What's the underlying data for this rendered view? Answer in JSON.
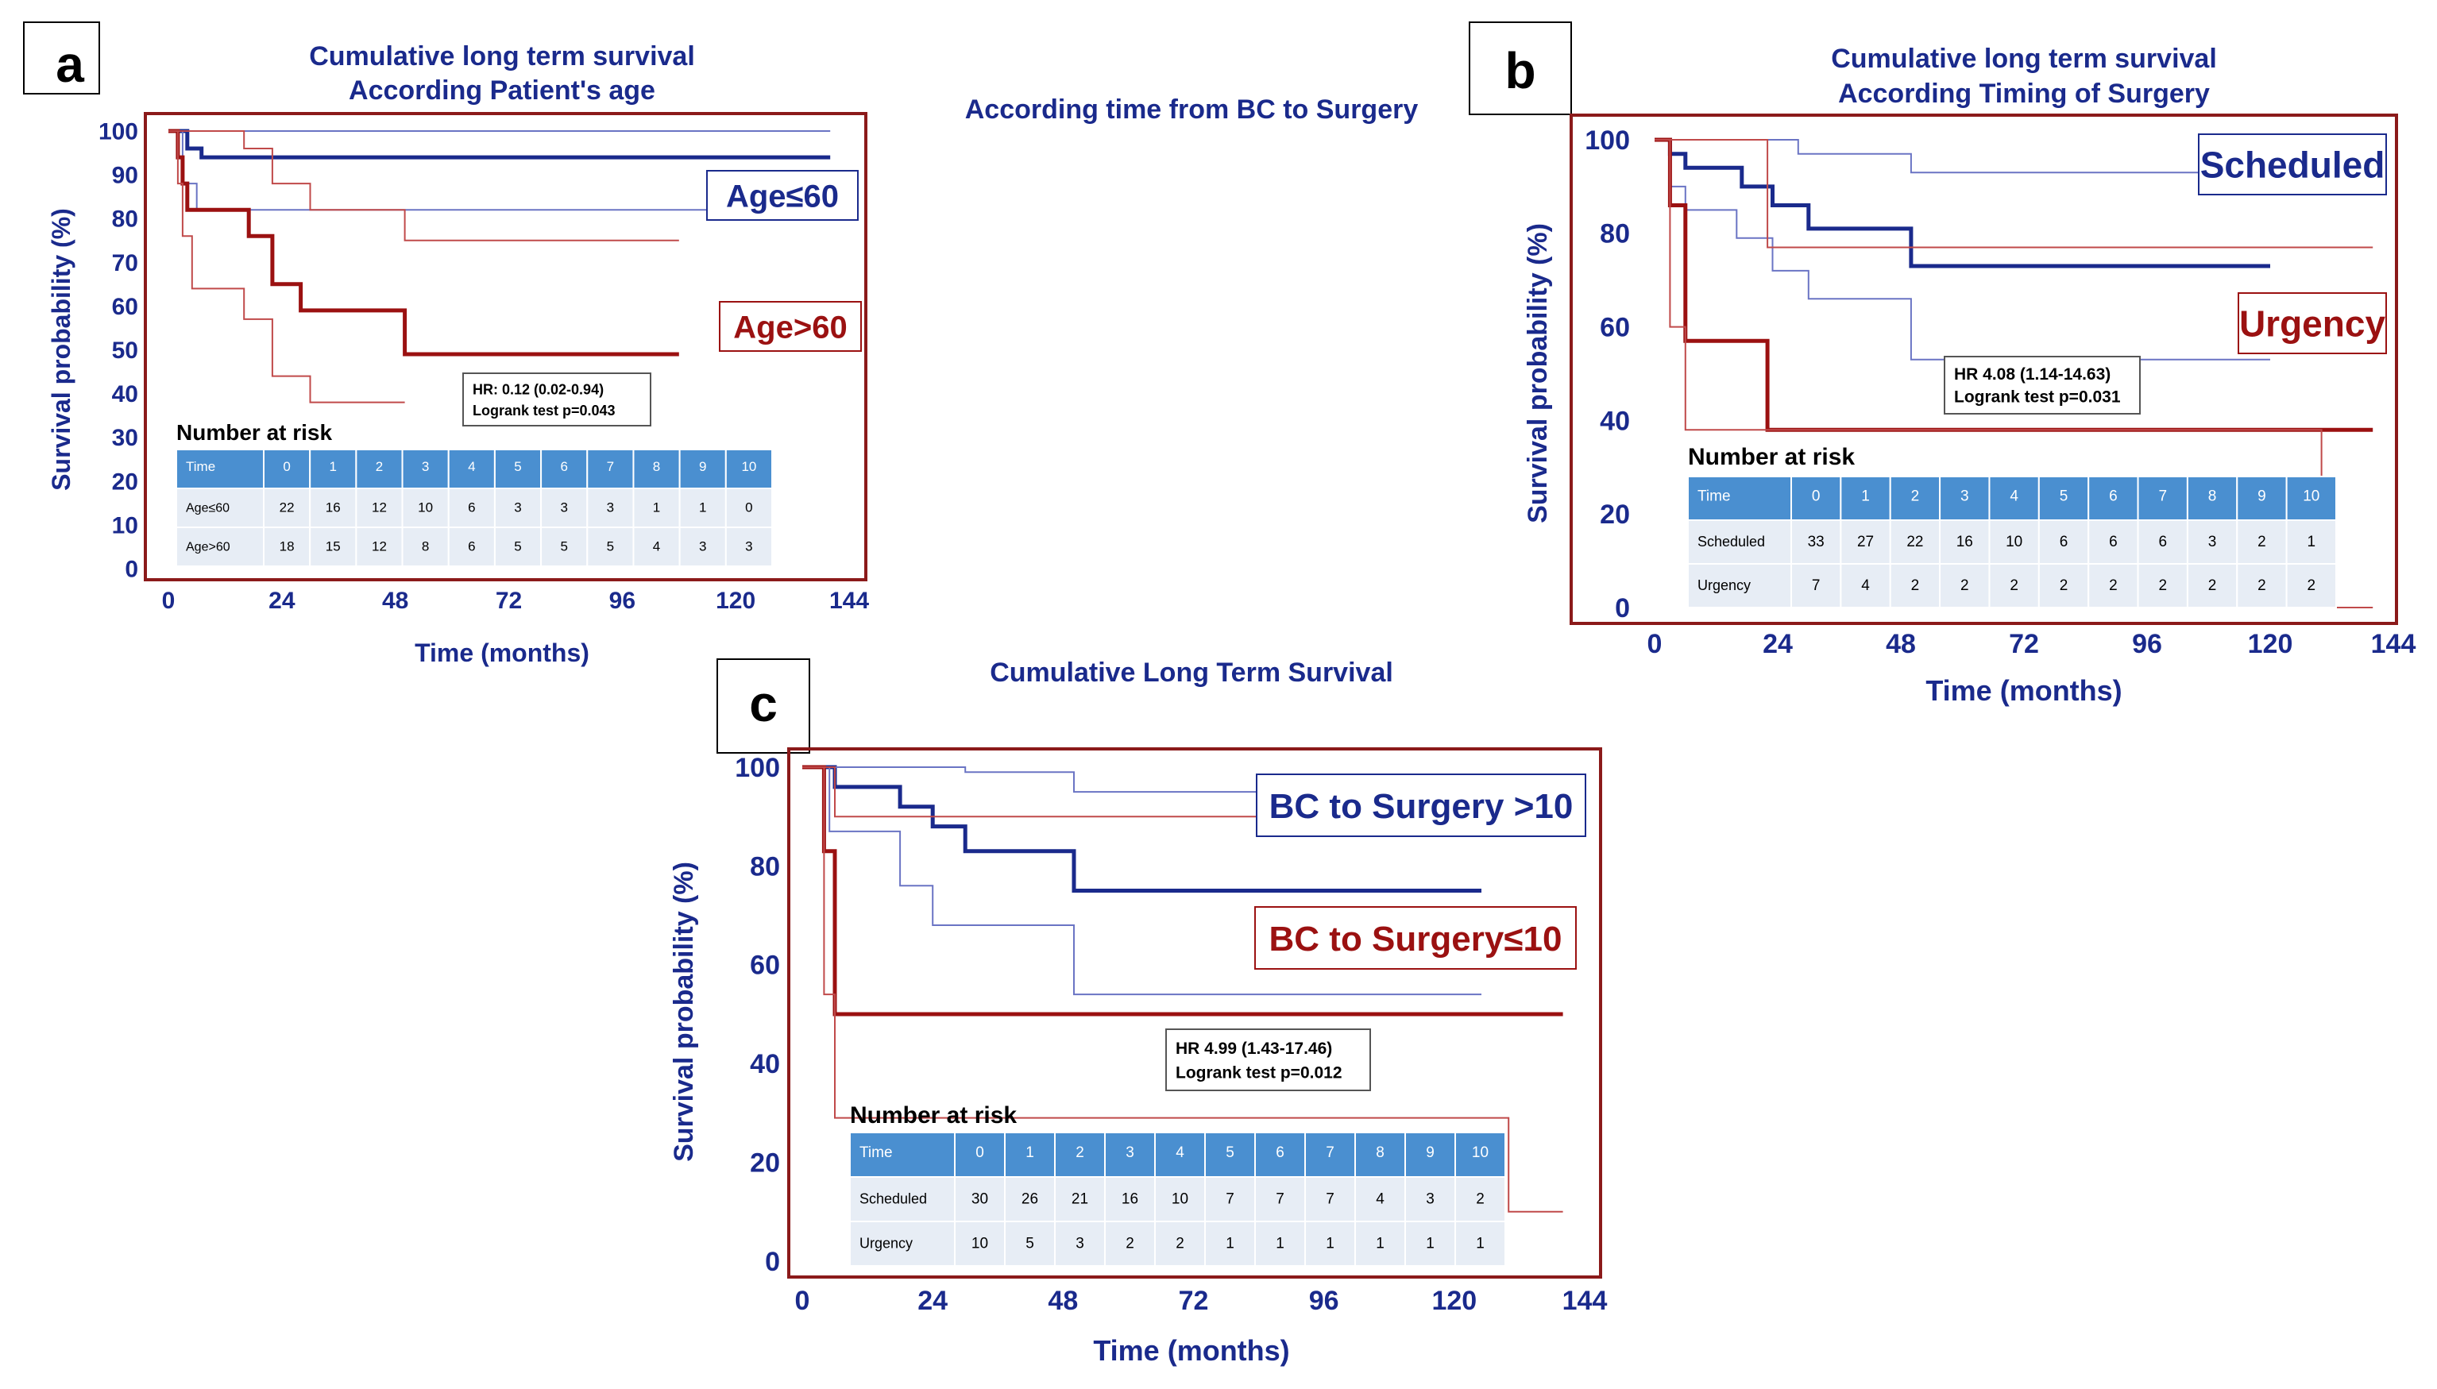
{
  "colors": {
    "frame": "#8b1a1a",
    "blue": "#1a2a8c",
    "blue_ci": "#6a74c4",
    "red": "#9b1111",
    "red_ci": "#c04a4a",
    "table_head": "#4a8fd0",
    "table_row": "#e7edf5"
  },
  "chart_data": [
    {
      "id": "a",
      "type": "line",
      "panel_label": "a",
      "title_line1": "Cumulative long term survival",
      "title_line2": "According Patient's age",
      "xlabel": "Time (months)",
      "ylabel": "Survival probability (%)",
      "xlim": [
        0,
        144
      ],
      "ylim": [
        0,
        100
      ],
      "xticks": [
        0,
        24,
        48,
        72,
        96,
        120,
        144
      ],
      "yticks": [
        0,
        10,
        20,
        30,
        40,
        50,
        60,
        70,
        80,
        90,
        100
      ],
      "legend": [
        {
          "text": "Age≤60",
          "color_key": "blue",
          "position": "upper-right"
        },
        {
          "text": "Age>60",
          "color_key": "red",
          "position": "middle-right"
        }
      ],
      "hr_line1": "HR: 0.12 (0.02-0.94)",
      "hr_line2": "Logrank test p=0.043",
      "series": [
        {
          "name": "Age≤60",
          "role": "estimate",
          "color_key": "blue",
          "x": [
            0,
            4,
            4,
            7,
            7,
            140
          ],
          "y": [
            100,
            100,
            96,
            96,
            94,
            94
          ]
        },
        {
          "name": "Age≤60 upper CI",
          "role": "ci",
          "color_key": "blue_ci",
          "x": [
            0,
            140
          ],
          "y": [
            100,
            100
          ]
        },
        {
          "name": "Age≤60 lower CI",
          "role": "ci",
          "color_key": "blue_ci",
          "x": [
            0,
            3,
            3,
            6,
            6,
            140
          ],
          "y": [
            100,
            100,
            88,
            88,
            82,
            82
          ]
        },
        {
          "name": "Age>60",
          "role": "estimate",
          "color_key": "red",
          "x": [
            0,
            2,
            2,
            3,
            3,
            4,
            4,
            17,
            17,
            22,
            22,
            28,
            28,
            50,
            50,
            108
          ],
          "y": [
            100,
            100,
            94,
            94,
            88,
            88,
            82,
            82,
            76,
            76,
            65,
            65,
            59,
            59,
            49,
            49
          ]
        },
        {
          "name": "Age>60 upper CI",
          "role": "ci",
          "color_key": "red_ci",
          "x": [
            0,
            16,
            16,
            22,
            22,
            30,
            30,
            50,
            50,
            108
          ],
          "y": [
            100,
            100,
            96,
            96,
            88,
            88,
            82,
            82,
            75,
            75
          ]
        },
        {
          "name": "Age>60 lower CI",
          "role": "ci",
          "color_key": "red_ci",
          "x": [
            0,
            2,
            2,
            3,
            3,
            5,
            5,
            16,
            16,
            22,
            22,
            30,
            30,
            50
          ],
          "y": [
            100,
            100,
            88,
            88,
            76,
            76,
            64,
            64,
            57,
            57,
            44,
            44,
            38,
            38
          ]
        }
      ],
      "risk_table": {
        "title": "Number at risk",
        "header": [
          "Time",
          "0",
          "1",
          "2",
          "3",
          "4",
          "5",
          "6",
          "7",
          "8",
          "9",
          "10"
        ],
        "rows": [
          [
            "Age≤60",
            "22",
            "16",
            "12",
            "10",
            "6",
            "3",
            "3",
            "3",
            "1",
            "1",
            "0"
          ],
          [
            "Age>60",
            "18",
            "15",
            "12",
            "8",
            "6",
            "5",
            "5",
            "5",
            "4",
            "3",
            "3"
          ]
        ]
      }
    },
    {
      "id": "b",
      "type": "line",
      "panel_label": "b",
      "title_line1": "Cumulative long term survival",
      "title_line2": "According Timing of Surgery",
      "xlabel": "Time (months)",
      "ylabel": "Survival probability (%)",
      "xlim": [
        0,
        144
      ],
      "ylim": [
        0,
        100
      ],
      "xticks": [
        0,
        24,
        48,
        72,
        96,
        120,
        144
      ],
      "yticks": [
        0,
        20,
        40,
        60,
        80,
        100
      ],
      "legend": [
        {
          "text": "Scheduled",
          "color_key": "blue",
          "position": "upper-right"
        },
        {
          "text": "Urgency",
          "color_key": "red",
          "position": "middle-right"
        }
      ],
      "hr_line1": "HR 4.08 (1.14-14.63)",
      "hr_line2": "Logrank test p=0.031",
      "series": [
        {
          "name": "Scheduled",
          "role": "estimate",
          "color_key": "blue",
          "x": [
            0,
            3,
            3,
            6,
            6,
            17,
            17,
            23,
            23,
            30,
            30,
            50,
            50,
            120
          ],
          "y": [
            100,
            100,
            97,
            97,
            94,
            94,
            90,
            90,
            86,
            86,
            81,
            81,
            73,
            73
          ]
        },
        {
          "name": "Scheduled upper CI",
          "role": "ci",
          "color_key": "blue_ci",
          "x": [
            0,
            28,
            28,
            50,
            50,
            120
          ],
          "y": [
            100,
            100,
            97,
            97,
            93,
            93
          ]
        },
        {
          "name": "Scheduled lower CI",
          "role": "ci",
          "color_key": "blue_ci",
          "x": [
            0,
            3,
            3,
            6,
            6,
            16,
            16,
            23,
            23,
            30,
            30,
            50,
            50,
            120
          ],
          "y": [
            100,
            100,
            90,
            90,
            85,
            85,
            79,
            79,
            72,
            72,
            66,
            66,
            53,
            53
          ]
        },
        {
          "name": "Urgency",
          "role": "estimate",
          "color_key": "red",
          "x": [
            0,
            3,
            3,
            6,
            6,
            22,
            22,
            140
          ],
          "y": [
            100,
            100,
            86,
            86,
            57,
            57,
            38,
            38
          ]
        },
        {
          "name": "Urgency upper CI",
          "role": "ci",
          "color_key": "red_ci",
          "x": [
            0,
            22,
            22,
            140
          ],
          "y": [
            100,
            100,
            77,
            77
          ]
        },
        {
          "name": "Urgency lower CI",
          "role": "ci",
          "color_key": "red_ci",
          "x": [
            0,
            3,
            3,
            6,
            6,
            130,
            130,
            140
          ],
          "y": [
            100,
            100,
            60,
            60,
            38,
            38,
            0,
            0
          ]
        }
      ],
      "risk_table": {
        "title": "Number at risk",
        "header": [
          "Time",
          "0",
          "1",
          "2",
          "3",
          "4",
          "5",
          "6",
          "7",
          "8",
          "9",
          "10"
        ],
        "rows": [
          [
            "Scheduled",
            "33",
            "27",
            "22",
            "16",
            "10",
            "6",
            "6",
            "6",
            "3",
            "2",
            "1"
          ],
          [
            "Urgency",
            "7",
            "4",
            "2",
            "2",
            "2",
            "2",
            "2",
            "2",
            "2",
            "2",
            "2"
          ]
        ]
      }
    },
    {
      "id": "c",
      "type": "line",
      "panel_label": "c",
      "title_line1": "Cumulative Long Term Survival",
      "title_line2": "According time from BC to Surgery",
      "xlabel": "Time (months)",
      "ylabel": "Survival probability (%)",
      "xlim": [
        0,
        144
      ],
      "ylim": [
        0,
        100
      ],
      "xticks": [
        0,
        24,
        48,
        72,
        96,
        120,
        144
      ],
      "yticks": [
        0,
        20,
        40,
        60,
        80,
        100
      ],
      "legend": [
        {
          "text": "BC to Surgery >10",
          "color_key": "blue",
          "position": "upper-right"
        },
        {
          "text": "BC to Surgery≤10",
          "color_key": "red",
          "position": "middle-right"
        }
      ],
      "hr_line1": "HR 4.99 (1.43-17.46)",
      "hr_line2": "Logrank test p=0.012",
      "series": [
        {
          "name": "BC to Surgery >10",
          "role": "estimate",
          "color_key": "blue",
          "x": [
            0,
            6,
            6,
            18,
            18,
            24,
            24,
            30,
            30,
            50,
            50,
            125
          ],
          "y": [
            100,
            100,
            96,
            96,
            92,
            92,
            88,
            88,
            83,
            83,
            75,
            75
          ]
        },
        {
          "name": ">10 upper CI",
          "role": "ci",
          "color_key": "blue_ci",
          "x": [
            0,
            30,
            30,
            50,
            50,
            125
          ],
          "y": [
            100,
            100,
            99,
            99,
            95,
            95
          ]
        },
        {
          "name": ">10 lower CI",
          "role": "ci",
          "color_key": "blue_ci",
          "x": [
            0,
            5,
            5,
            18,
            18,
            24,
            24,
            30,
            30,
            50,
            50,
            125
          ],
          "y": [
            100,
            100,
            87,
            87,
            76,
            76,
            68,
            68,
            68,
            68,
            54,
            54
          ]
        },
        {
          "name": "BC to Surgery≤10",
          "role": "estimate",
          "color_key": "red",
          "x": [
            0,
            4,
            4,
            6,
            6,
            140
          ],
          "y": [
            100,
            100,
            83,
            83,
            50,
            50
          ]
        },
        {
          "name": "≤10 upper CI",
          "role": "ci",
          "color_key": "red_ci",
          "x": [
            0,
            6,
            6,
            140
          ],
          "y": [
            100,
            100,
            90,
            90
          ]
        },
        {
          "name": "≤10 lower CI",
          "role": "ci",
          "color_key": "red_ci",
          "x": [
            0,
            4,
            4,
            6,
            6,
            130,
            130,
            140
          ],
          "y": [
            100,
            100,
            54,
            54,
            29,
            29,
            10,
            10
          ]
        }
      ],
      "risk_table": {
        "title": "Number at risk",
        "header": [
          "Time",
          "0",
          "1",
          "2",
          "3",
          "4",
          "5",
          "6",
          "7",
          "8",
          "9",
          "10"
        ],
        "rows": [
          [
            "Scheduled",
            "30",
            "26",
            "21",
            "16",
            "10",
            "7",
            "7",
            "7",
            "4",
            "3",
            "2"
          ],
          [
            "Urgency",
            "10",
            "5",
            "3",
            "2",
            "2",
            "1",
            "1",
            "1",
            "1",
            "1",
            "1"
          ]
        ]
      }
    }
  ]
}
